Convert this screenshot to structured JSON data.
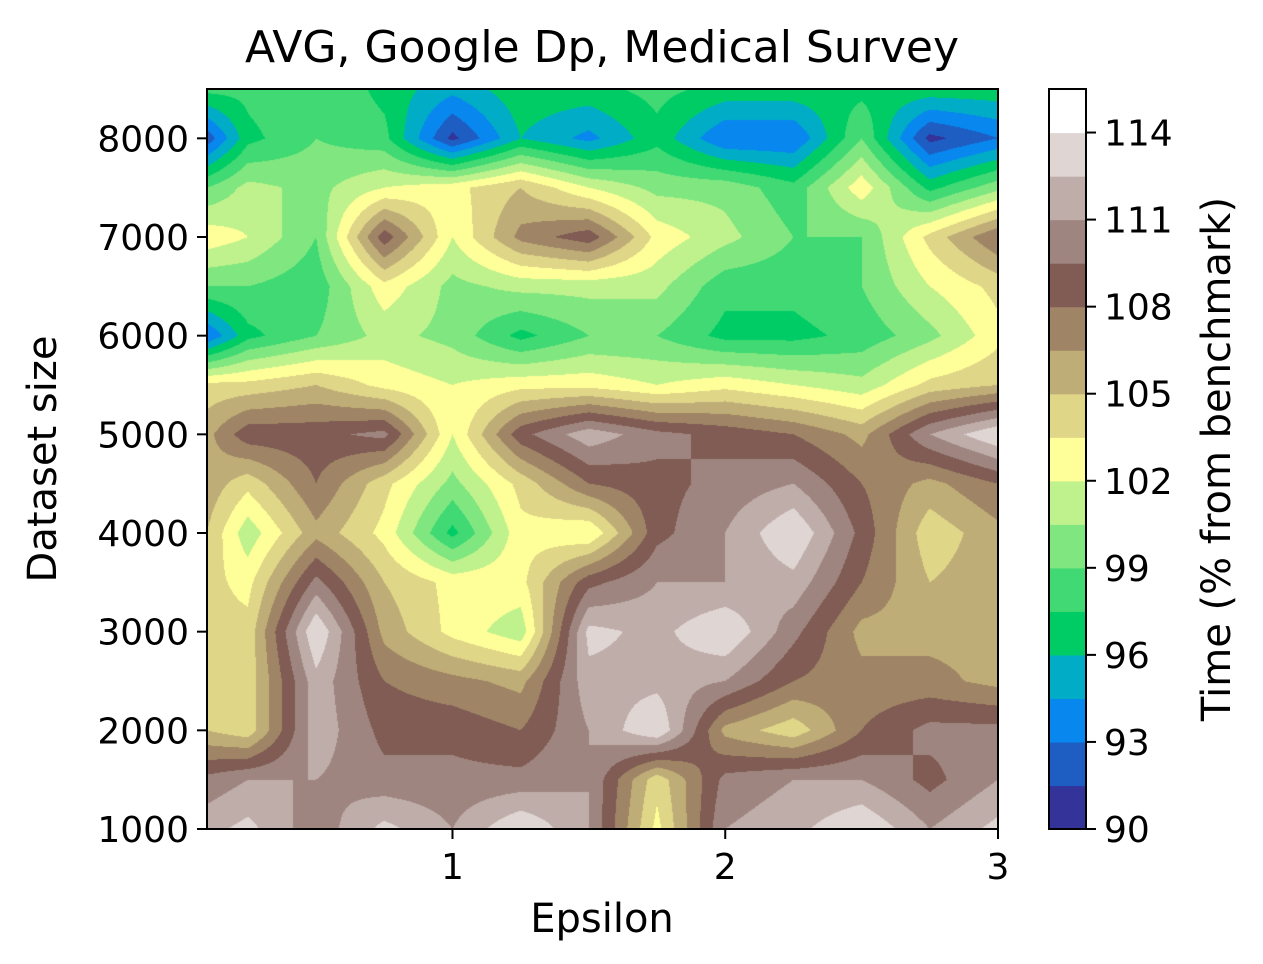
{
  "chart_data": {
    "type": "heatmap",
    "title": "AVG, Google Dp, Medical Survey",
    "xlabel": "Epsilon",
    "ylabel": "Dataset size",
    "colorbar_label": "Time (% from benchmark)",
    "colormap": "terrain",
    "x": [
      0.1,
      0.25,
      0.5,
      0.75,
      1.0,
      1.25,
      1.5,
      1.75,
      2.0,
      2.25,
      2.5,
      2.75,
      3.0
    ],
    "y": [
      1000,
      1500,
      2000,
      2500,
      3000,
      3500,
      4000,
      4500,
      5000,
      5500,
      6000,
      6500,
      7000,
      7500,
      8000,
      8500
    ],
    "xlim": [
      0.1,
      3.0
    ],
    "ylim": [
      1000,
      8500
    ],
    "x_ticks": [
      1,
      2,
      3
    ],
    "y_ticks": [
      1000,
      2000,
      3000,
      4000,
      5000,
      6000,
      7000,
      8000
    ],
    "color_levels": [
      90,
      91.5,
      93,
      94.5,
      96,
      97.5,
      99,
      100.5,
      102,
      103.5,
      105,
      106.5,
      108,
      109.5,
      111,
      112.5,
      114,
      115.5
    ],
    "colorbar_ticks": [
      90,
      93,
      96,
      99,
      102,
      105,
      108,
      111,
      114
    ],
    "z": [
      [
        112,
        113,
        110,
        113,
        111,
        114,
        111,
        103,
        111,
        112,
        114,
        111,
        113
      ],
      [
        110,
        111,
        111,
        110,
        110,
        110,
        111,
        104,
        110,
        111,
        111,
        109,
        111
      ],
      [
        105,
        104,
        112,
        109,
        109,
        108,
        111,
        114,
        106,
        104,
        108,
        110,
        110
      ],
      [
        104,
        104,
        112,
        108,
        107,
        106,
        112,
        112,
        111,
        108,
        107,
        107,
        106
      ],
      [
        104,
        104,
        114,
        106,
        103,
        101,
        113,
        112,
        114,
        110,
        106,
        106,
        106
      ],
      [
        104,
        103,
        110,
        105,
        103,
        103,
        109,
        111,
        111,
        112,
        108,
        105,
        106
      ],
      [
        105,
        101,
        106,
        103,
        97,
        103,
        102,
        109,
        111,
        114,
        109,
        104,
        106
      ],
      [
        106,
        104,
        108,
        104,
        100,
        104,
        108,
        109,
        110,
        111,
        108,
        106,
        108
      ],
      [
        106,
        109,
        109,
        110,
        102,
        109,
        112,
        110,
        109,
        108,
        106,
        111,
        114
      ],
      [
        104,
        104,
        105,
        103,
        102,
        103,
        103,
        102,
        103,
        102,
        101,
        104,
        105
      ],
      [
        93,
        97,
        99,
        101,
        100,
        97,
        99,
        99,
        97,
        97,
        98,
        100,
        103
      ],
      [
        99,
        99,
        98,
        103,
        100,
        101,
        101,
        101,
        98,
        98,
        99,
        102,
        104
      ],
      [
        103,
        102,
        99,
        109,
        102,
        107,
        109,
        103,
        101,
        99,
        99,
        104,
        108
      ],
      [
        99,
        101,
        100,
        102,
        103,
        105,
        102,
        100,
        100,
        98,
        103,
        97,
        100
      ],
      [
        92,
        97,
        99,
        98,
        91,
        96,
        94,
        97,
        93,
        93,
        99,
        91,
        93
      ],
      [
        98,
        98,
        99,
        97,
        95,
        97,
        97,
        98,
        97,
        97,
        97,
        97,
        97
      ]
    ]
  }
}
